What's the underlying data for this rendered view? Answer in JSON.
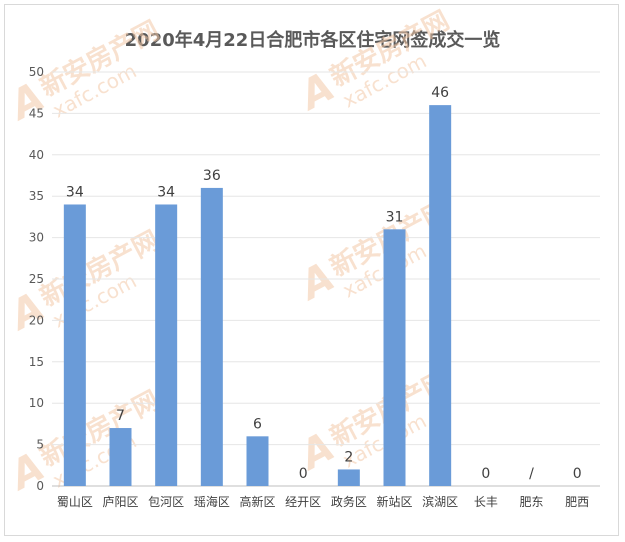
{
  "chart_data": {
    "type": "bar",
    "title": "2020年4月22日合肥市各区住宅网签成交一览",
    "categories": [
      "蜀山区",
      "庐阳区",
      "包河区",
      "瑶海区",
      "高新区",
      "经开区",
      "政务区",
      "新站区",
      "滨湖区",
      "长丰",
      "肥东",
      "肥西"
    ],
    "values": [
      34,
      7,
      34,
      36,
      6,
      0,
      2,
      31,
      46,
      0,
      null,
      0
    ],
    "data_labels": [
      "34",
      "7",
      "34",
      "36",
      "6",
      "0",
      "2",
      "31",
      "46",
      "0",
      "/",
      "0"
    ],
    "ylim": [
      0,
      50
    ],
    "yticks": [
      "0",
      "5",
      "10",
      "15",
      "20",
      "25",
      "30",
      "35",
      "40",
      "45",
      "50"
    ],
    "bar_color": "#6a9bd8",
    "grid": true,
    "xlabel": "",
    "ylabel": ""
  },
  "watermark": {
    "main": "新安房产网",
    "sub": "xafc.com",
    "mark": "A"
  }
}
